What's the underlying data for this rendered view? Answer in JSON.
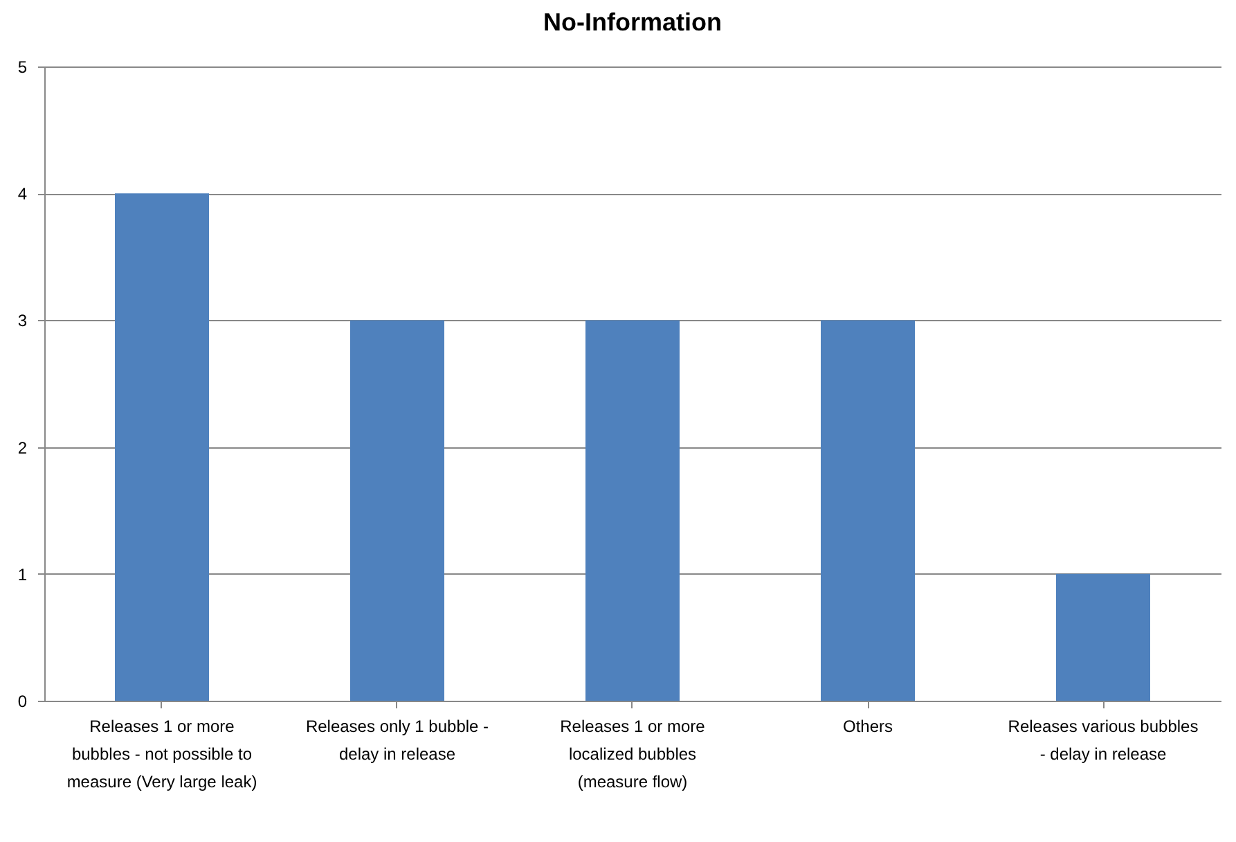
{
  "chart_data": {
    "type": "bar",
    "title": "No-Information",
    "categories": [
      "Releases 1 or more bubbles - not possible to measure (Very large leak)",
      "Releases only 1 bubble - delay in release",
      "Releases 1 or more localized bubbles (measure flow)",
      "Others",
      "Releases various bubbles - delay in release"
    ],
    "values": [
      4,
      3,
      3,
      3,
      1
    ],
    "color": "#4f81bd",
    "ylim": [
      0,
      5
    ],
    "yticks": [
      0,
      1,
      2,
      3,
      4,
      5
    ],
    "grid": "y"
  }
}
